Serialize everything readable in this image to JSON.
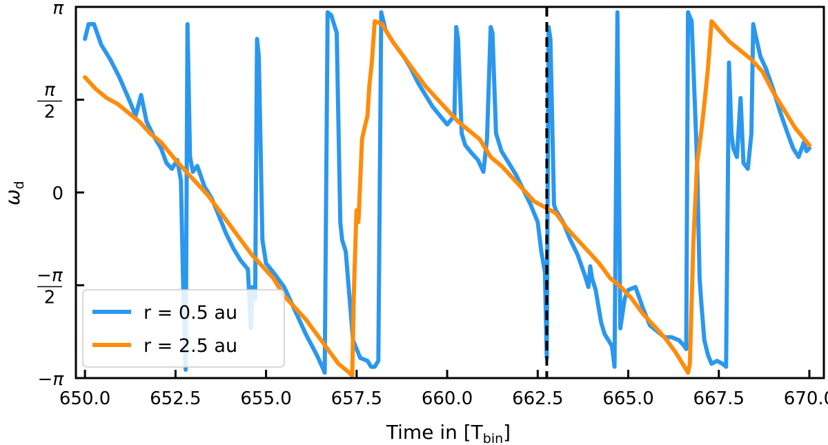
{
  "chart_data": {
    "type": "line",
    "xlabel": "Time in [T",
    "xlabel_sub": "bin",
    "xlabel_end": "]",
    "ylabel": "ω",
    "ylabel_sub": "d",
    "xlim": [
      649.75,
      670.4
    ],
    "ylim": [
      -3.1416,
      3.1416
    ],
    "x_ticks": [
      650.0,
      652.5,
      655.0,
      657.5,
      660.0,
      662.5,
      665.0,
      667.5,
      670.0
    ],
    "x_tick_labels": [
      "650.0",
      "652.5",
      "655.0",
      "657.5",
      "660.0",
      "662.5",
      "665.0",
      "667.5",
      "670.0"
    ],
    "y_ticks": [
      -3.1416,
      -1.5708,
      0,
      1.5708,
      3.1416
    ],
    "y_tick_labels": [
      "−π",
      "−π/2",
      "0",
      "π/2",
      "π"
    ],
    "grid": false,
    "legend_position": "bottom-left",
    "vline": {
      "x": 662.75,
      "style": "dashed",
      "color": "#000000"
    },
    "series": [
      {
        "name": "r = 0.5 au",
        "color": "#2b97ee",
        "points": [
          [
            650.0,
            2.6
          ],
          [
            650.1,
            2.85
          ],
          [
            650.25,
            2.85
          ],
          [
            650.45,
            2.5
          ],
          [
            650.7,
            2.25
          ],
          [
            650.95,
            1.95
          ],
          [
            651.2,
            1.6
          ],
          [
            651.4,
            1.3
          ],
          [
            651.55,
            1.65
          ],
          [
            651.7,
            1.2
          ],
          [
            651.9,
            0.95
          ],
          [
            652.1,
            0.75
          ],
          [
            652.25,
            0.5
          ],
          [
            652.4,
            0.4
          ],
          [
            652.55,
            0.55
          ],
          [
            652.65,
            0.2
          ],
          [
            652.72,
            -1.8
          ],
          [
            652.78,
            -3.0
          ],
          [
            652.83,
            2.85
          ],
          [
            652.9,
            0.6
          ],
          [
            652.98,
            0.35
          ],
          [
            653.1,
            0.45
          ],
          [
            653.3,
            0.1
          ],
          [
            653.5,
            -0.1
          ],
          [
            653.7,
            -0.4
          ],
          [
            653.9,
            -0.7
          ],
          [
            654.1,
            -0.95
          ],
          [
            654.3,
            -1.15
          ],
          [
            654.5,
            -1.3
          ],
          [
            654.58,
            -2.3
          ],
          [
            654.63,
            -1.6
          ],
          [
            654.7,
            -1.8
          ],
          [
            654.75,
            2.6
          ],
          [
            654.8,
            2.3
          ],
          [
            654.9,
            -0.8
          ],
          [
            655.0,
            -1.2
          ],
          [
            655.2,
            -1.35
          ],
          [
            655.5,
            -1.6
          ],
          [
            655.8,
            -2.0
          ],
          [
            656.1,
            -2.4
          ],
          [
            656.4,
            -2.75
          ],
          [
            656.55,
            -2.95
          ],
          [
            656.62,
            -3.05
          ],
          [
            656.7,
            3.05
          ],
          [
            656.8,
            3.0
          ],
          [
            656.95,
            2.7
          ],
          [
            657.05,
            -0.5
          ],
          [
            657.1,
            -0.8
          ],
          [
            657.2,
            -1.0
          ],
          [
            657.4,
            -2.5
          ],
          [
            657.6,
            -2.8
          ],
          [
            657.8,
            -2.85
          ],
          [
            657.9,
            -2.95
          ],
          [
            658.0,
            -2.95
          ],
          [
            658.05,
            -2.9
          ],
          [
            658.1,
            -2.85
          ],
          [
            658.18,
            3.05
          ],
          [
            658.3,
            2.75
          ],
          [
            658.5,
            2.55
          ],
          [
            658.8,
            2.3
          ],
          [
            659.0,
            2.1
          ],
          [
            659.2,
            1.85
          ],
          [
            659.4,
            1.65
          ],
          [
            659.6,
            1.45
          ],
          [
            659.8,
            1.3
          ],
          [
            660.0,
            1.15
          ],
          [
            660.2,
            1.3
          ],
          [
            660.25,
            2.8
          ],
          [
            660.3,
            2.6
          ],
          [
            660.4,
            1.0
          ],
          [
            660.5,
            0.8
          ],
          [
            660.7,
            0.65
          ],
          [
            660.85,
            0.55
          ],
          [
            661.0,
            0.35
          ],
          [
            661.1,
            0.9
          ],
          [
            661.2,
            2.8
          ],
          [
            661.25,
            2.7
          ],
          [
            661.35,
            1.0
          ],
          [
            661.5,
            0.7
          ],
          [
            661.7,
            0.5
          ],
          [
            661.9,
            0.3
          ],
          [
            662.1,
            0.05
          ],
          [
            662.3,
            -0.2
          ],
          [
            662.5,
            -0.5
          ],
          [
            662.6,
            -1.0
          ],
          [
            662.7,
            -1.35
          ],
          [
            662.75,
            -2.8
          ],
          [
            662.8,
            2.8
          ],
          [
            662.85,
            2.6
          ],
          [
            662.95,
            -0.2
          ],
          [
            663.0,
            -0.3
          ],
          [
            663.2,
            -0.5
          ],
          [
            663.4,
            -0.8
          ],
          [
            663.6,
            -1.05
          ],
          [
            663.8,
            -1.4
          ],
          [
            663.9,
            -1.6
          ],
          [
            663.95,
            -1.25
          ],
          [
            664.0,
            -1.45
          ],
          [
            664.1,
            -1.65
          ],
          [
            664.25,
            -2.2
          ],
          [
            664.35,
            -2.4
          ],
          [
            664.45,
            -2.5
          ],
          [
            664.55,
            -2.6
          ],
          [
            664.62,
            -2.95
          ],
          [
            664.7,
            3.05
          ],
          [
            664.78,
            -2.3
          ],
          [
            664.9,
            -1.8
          ],
          [
            665.0,
            -1.65
          ],
          [
            665.2,
            -1.6
          ],
          [
            665.4,
            -1.95
          ],
          [
            665.6,
            -2.25
          ],
          [
            665.8,
            -2.35
          ],
          [
            666.0,
            -2.45
          ],
          [
            666.2,
            -2.45
          ],
          [
            666.4,
            -2.5
          ],
          [
            666.55,
            -2.6
          ],
          [
            666.6,
            -2.65
          ],
          [
            666.65,
            3.05
          ],
          [
            666.75,
            2.9
          ],
          [
            666.9,
            0.5
          ],
          [
            666.97,
            -1.45
          ],
          [
            667.02,
            -1.9
          ],
          [
            667.1,
            -2.5
          ],
          [
            667.2,
            -2.75
          ],
          [
            667.3,
            -2.9
          ],
          [
            667.45,
            -2.85
          ],
          [
            667.6,
            -2.9
          ],
          [
            667.7,
            -2.95
          ],
          [
            667.78,
            2.2
          ],
          [
            667.85,
            1.0
          ],
          [
            667.9,
            0.75
          ],
          [
            668.0,
            0.6
          ],
          [
            668.1,
            1.6
          ],
          [
            668.18,
            0.5
          ],
          [
            668.3,
            0.4
          ],
          [
            668.4,
            1.0
          ],
          [
            668.45,
            2.85
          ],
          [
            668.5,
            2.7
          ],
          [
            668.65,
            2.3
          ],
          [
            668.8,
            2.1
          ],
          [
            669.0,
            1.75
          ],
          [
            669.2,
            1.35
          ],
          [
            669.4,
            1.0
          ],
          [
            669.55,
            0.75
          ],
          [
            669.7,
            0.6
          ],
          [
            669.85,
            0.85
          ],
          [
            669.92,
            0.7
          ],
          [
            670.0,
            0.75
          ]
        ]
      },
      {
        "name": "r = 2.5 au",
        "color": "#ff8c0b",
        "points": [
          [
            650.0,
            1.95
          ],
          [
            650.3,
            1.75
          ],
          [
            650.6,
            1.6
          ],
          [
            650.9,
            1.5
          ],
          [
            651.2,
            1.35
          ],
          [
            651.5,
            1.2
          ],
          [
            651.8,
            1.0
          ],
          [
            652.1,
            0.85
          ],
          [
            652.5,
            0.55
          ],
          [
            652.8,
            0.35
          ],
          [
            653.1,
            0.15
          ],
          [
            653.4,
            -0.05
          ],
          [
            653.7,
            -0.3
          ],
          [
            654.0,
            -0.55
          ],
          [
            654.3,
            -0.8
          ],
          [
            654.6,
            -1.05
          ],
          [
            654.9,
            -1.25
          ],
          [
            655.2,
            -1.45
          ],
          [
            655.5,
            -1.75
          ],
          [
            655.8,
            -1.95
          ],
          [
            656.1,
            -2.15
          ],
          [
            656.4,
            -2.4
          ],
          [
            656.7,
            -2.65
          ],
          [
            657.0,
            -2.9
          ],
          [
            657.3,
            -3.05
          ],
          [
            657.38,
            -3.1
          ],
          [
            657.42,
            -1.8
          ],
          [
            657.48,
            -0.6
          ],
          [
            657.5,
            -0.3
          ],
          [
            657.55,
            -0.5
          ],
          [
            657.6,
            0.2
          ],
          [
            657.65,
            0.9
          ],
          [
            657.72,
            1.1
          ],
          [
            657.8,
            1.3
          ],
          [
            657.85,
            1.8
          ],
          [
            657.92,
            2.2
          ],
          [
            658.0,
            2.9
          ],
          [
            658.2,
            2.85
          ],
          [
            658.5,
            2.55
          ],
          [
            658.8,
            2.3
          ],
          [
            659.1,
            2.05
          ],
          [
            659.4,
            1.8
          ],
          [
            659.7,
            1.6
          ],
          [
            660.0,
            1.4
          ],
          [
            660.3,
            1.2
          ],
          [
            660.6,
            1.05
          ],
          [
            660.9,
            0.9
          ],
          [
            661.2,
            0.6
          ],
          [
            661.5,
            0.45
          ],
          [
            661.8,
            0.25
          ],
          [
            662.1,
            0.05
          ],
          [
            662.4,
            -0.15
          ],
          [
            662.7,
            -0.25
          ],
          [
            663.0,
            -0.35
          ],
          [
            663.3,
            -0.6
          ],
          [
            663.6,
            -0.8
          ],
          [
            663.9,
            -1.0
          ],
          [
            664.2,
            -1.2
          ],
          [
            664.5,
            -1.45
          ],
          [
            664.8,
            -1.6
          ],
          [
            665.1,
            -1.8
          ],
          [
            665.4,
            -2.05
          ],
          [
            665.7,
            -2.25
          ],
          [
            666.0,
            -2.45
          ],
          [
            666.3,
            -2.7
          ],
          [
            666.55,
            -2.95
          ],
          [
            666.65,
            -3.05
          ],
          [
            666.7,
            -2.9
          ],
          [
            666.8,
            -0.8
          ],
          [
            666.9,
            0.5
          ],
          [
            667.0,
            0.95
          ],
          [
            667.1,
            1.5
          ],
          [
            667.2,
            2.1
          ],
          [
            667.3,
            2.9
          ],
          [
            667.5,
            2.75
          ],
          [
            667.8,
            2.55
          ],
          [
            668.1,
            2.4
          ],
          [
            668.4,
            2.25
          ],
          [
            668.7,
            2.05
          ],
          [
            669.0,
            1.7
          ],
          [
            669.3,
            1.4
          ],
          [
            669.6,
            1.1
          ],
          [
            669.8,
            0.95
          ],
          [
            670.0,
            0.8
          ]
        ]
      }
    ]
  }
}
